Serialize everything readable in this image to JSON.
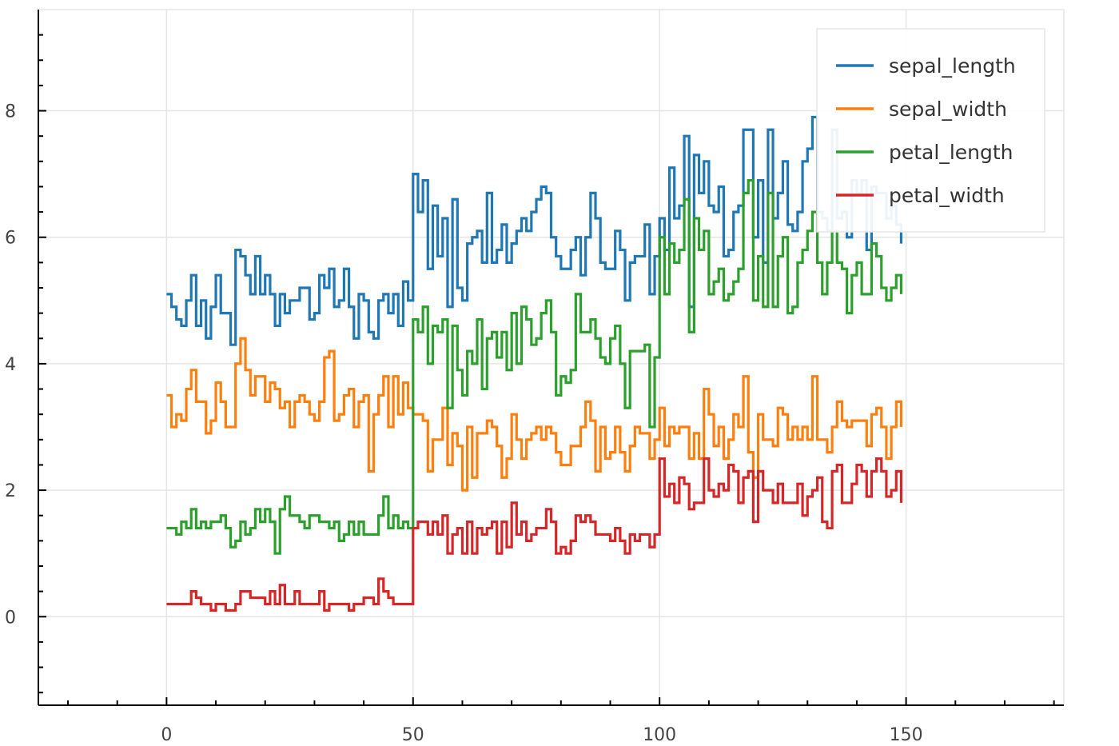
{
  "chart_data": {
    "type": "line",
    "step": true,
    "title": "",
    "xlabel": "",
    "ylabel": "",
    "xlim": [
      -26,
      182
    ],
    "ylim": [
      -1.4,
      9.6
    ],
    "grid": true,
    "x_ticks": [
      0,
      50,
      100,
      150
    ],
    "x_tick_labels": [
      "0",
      "50",
      "100",
      "150"
    ],
    "y_ticks": [
      0,
      2,
      4,
      6,
      8
    ],
    "y_tick_labels": [
      "0",
      "2",
      "4",
      "6",
      "8"
    ],
    "legend": {
      "placement": "top-right"
    },
    "x": [
      0,
      1,
      2,
      3,
      4,
      5,
      6,
      7,
      8,
      9,
      10,
      11,
      12,
      13,
      14,
      15,
      16,
      17,
      18,
      19,
      20,
      21,
      22,
      23,
      24,
      25,
      26,
      27,
      28,
      29,
      30,
      31,
      32,
      33,
      34,
      35,
      36,
      37,
      38,
      39,
      40,
      41,
      42,
      43,
      44,
      45,
      46,
      47,
      48,
      49,
      50,
      51,
      52,
      53,
      54,
      55,
      56,
      57,
      58,
      59,
      60,
      61,
      62,
      63,
      64,
      65,
      66,
      67,
      68,
      69,
      70,
      71,
      72,
      73,
      74,
      75,
      76,
      77,
      78,
      79,
      80,
      81,
      82,
      83,
      84,
      85,
      86,
      87,
      88,
      89,
      90,
      91,
      92,
      93,
      94,
      95,
      96,
      97,
      98,
      99,
      100,
      101,
      102,
      103,
      104,
      105,
      106,
      107,
      108,
      109,
      110,
      111,
      112,
      113,
      114,
      115,
      116,
      117,
      118,
      119,
      120,
      121,
      122,
      123,
      124,
      125,
      126,
      127,
      128,
      129,
      130,
      131,
      132,
      133,
      134,
      135,
      136,
      137,
      138,
      139,
      140,
      141,
      142,
      143,
      144,
      145,
      146,
      147,
      148,
      149
    ],
    "series": [
      {
        "name": "sepal_length",
        "color": "#1f77b4",
        "values": [
          5.1,
          4.9,
          4.7,
          4.6,
          5.0,
          5.4,
          4.6,
          5.0,
          4.4,
          4.9,
          5.4,
          4.8,
          4.8,
          4.3,
          5.8,
          5.7,
          5.4,
          5.1,
          5.7,
          5.1,
          5.4,
          5.1,
          4.6,
          5.1,
          4.8,
          5.0,
          5.0,
          5.2,
          5.2,
          4.7,
          4.8,
          5.4,
          5.2,
          5.5,
          4.9,
          5.0,
          5.5,
          4.9,
          4.4,
          5.1,
          5.0,
          4.5,
          4.4,
          5.0,
          5.1,
          4.8,
          5.1,
          4.6,
          5.3,
          5.0,
          7.0,
          6.4,
          6.9,
          5.5,
          6.5,
          5.7,
          6.3,
          4.9,
          6.6,
          5.2,
          5.0,
          5.9,
          6.0,
          6.1,
          5.6,
          6.7,
          5.6,
          5.8,
          6.2,
          5.6,
          5.9,
          6.1,
          6.3,
          6.1,
          6.4,
          6.6,
          6.8,
          6.7,
          6.0,
          5.7,
          5.5,
          5.5,
          5.8,
          6.0,
          5.4,
          6.0,
          6.7,
          6.3,
          5.6,
          5.5,
          5.5,
          6.1,
          5.8,
          5.0,
          5.6,
          5.7,
          5.7,
          6.2,
          5.1,
          5.7,
          6.3,
          5.8,
          7.1,
          6.3,
          6.5,
          7.6,
          4.9,
          7.3,
          6.7,
          7.2,
          6.5,
          6.4,
          6.8,
          5.7,
          5.8,
          6.4,
          6.5,
          7.7,
          7.7,
          6.0,
          6.9,
          5.6,
          7.7,
          6.3,
          6.7,
          7.2,
          6.2,
          6.1,
          6.4,
          7.2,
          7.4,
          7.9,
          6.4,
          6.3,
          6.1,
          7.7,
          6.3,
          6.4,
          6.0,
          6.9,
          6.7,
          6.9,
          5.8,
          6.8,
          6.7,
          6.7,
          6.3,
          6.5,
          6.2,
          5.9
        ]
      },
      {
        "name": "sepal_width",
        "color": "#ff7f0e",
        "values": [
          3.5,
          3.0,
          3.2,
          3.1,
          3.6,
          3.9,
          3.4,
          3.4,
          2.9,
          3.1,
          3.7,
          3.4,
          3.0,
          3.0,
          4.0,
          4.4,
          3.9,
          3.5,
          3.8,
          3.8,
          3.4,
          3.7,
          3.6,
          3.3,
          3.4,
          3.0,
          3.4,
          3.5,
          3.4,
          3.2,
          3.1,
          3.4,
          4.1,
          4.2,
          3.1,
          3.2,
          3.5,
          3.6,
          3.0,
          3.4,
          3.5,
          2.3,
          3.2,
          3.5,
          3.8,
          3.0,
          3.8,
          3.2,
          3.7,
          3.3,
          3.2,
          3.2,
          3.1,
          2.3,
          2.8,
          2.8,
          3.3,
          2.4,
          2.9,
          2.7,
          2.0,
          3.0,
          2.2,
          2.9,
          2.9,
          3.1,
          3.0,
          2.7,
          2.2,
          2.5,
          3.2,
          2.8,
          2.5,
          2.8,
          2.9,
          3.0,
          2.8,
          3.0,
          2.9,
          2.6,
          2.4,
          2.4,
          2.7,
          2.7,
          3.0,
          3.4,
          3.1,
          2.3,
          3.0,
          2.5,
          2.6,
          3.0,
          2.6,
          2.3,
          2.7,
          3.0,
          2.9,
          2.9,
          2.5,
          2.8,
          3.3,
          2.7,
          3.0,
          2.9,
          3.0,
          3.0,
          2.5,
          2.9,
          2.5,
          3.6,
          3.2,
          2.7,
          3.0,
          2.5,
          2.8,
          3.2,
          3.0,
          3.8,
          2.6,
          2.2,
          3.2,
          2.8,
          2.8,
          2.7,
          3.3,
          3.2,
          2.8,
          3.0,
          2.8,
          3.0,
          2.8,
          3.8,
          2.8,
          2.8,
          2.6,
          3.0,
          3.4,
          3.1,
          3.0,
          3.1,
          3.1,
          3.1,
          2.7,
          3.2,
          3.3,
          3.0,
          2.5,
          3.0,
          3.4,
          3.0
        ]
      },
      {
        "name": "petal_length",
        "color": "#2ca02c",
        "values": [
          1.4,
          1.4,
          1.3,
          1.5,
          1.4,
          1.7,
          1.4,
          1.5,
          1.4,
          1.5,
          1.5,
          1.6,
          1.4,
          1.1,
          1.2,
          1.5,
          1.3,
          1.4,
          1.7,
          1.5,
          1.7,
          1.5,
          1.0,
          1.7,
          1.9,
          1.6,
          1.6,
          1.5,
          1.4,
          1.6,
          1.6,
          1.5,
          1.5,
          1.4,
          1.5,
          1.2,
          1.3,
          1.5,
          1.3,
          1.5,
          1.3,
          1.3,
          1.3,
          1.6,
          1.9,
          1.4,
          1.6,
          1.4,
          1.5,
          1.4,
          4.7,
          4.5,
          4.9,
          4.0,
          4.6,
          4.5,
          4.7,
          3.3,
          4.6,
          3.9,
          3.5,
          4.2,
          4.0,
          4.7,
          3.6,
          4.4,
          4.5,
          4.1,
          4.5,
          3.9,
          4.8,
          4.0,
          4.9,
          4.7,
          4.3,
          4.4,
          4.8,
          5.0,
          4.5,
          3.5,
          3.8,
          3.7,
          3.9,
          5.1,
          4.5,
          4.5,
          4.7,
          4.4,
          4.1,
          4.0,
          4.4,
          4.6,
          4.0,
          3.3,
          4.2,
          4.2,
          4.2,
          4.3,
          3.0,
          4.1,
          6.0,
          5.1,
          5.9,
          5.6,
          5.8,
          6.6,
          4.5,
          6.3,
          5.8,
          6.1,
          5.1,
          5.3,
          5.5,
          5.0,
          5.1,
          5.3,
          5.5,
          6.7,
          6.9,
          5.0,
          5.7,
          4.9,
          6.7,
          4.9,
          5.7,
          6.0,
          4.8,
          4.9,
          5.6,
          5.8,
          6.1,
          6.4,
          5.6,
          5.1,
          5.6,
          6.1,
          5.6,
          5.5,
          4.8,
          5.4,
          5.6,
          5.1,
          5.1,
          5.9,
          5.7,
          5.2,
          5.0,
          5.2,
          5.4,
          5.1
        ]
      },
      {
        "name": "petal_width",
        "color": "#d62728",
        "values": [
          0.2,
          0.2,
          0.2,
          0.2,
          0.2,
          0.4,
          0.3,
          0.2,
          0.2,
          0.1,
          0.2,
          0.2,
          0.1,
          0.1,
          0.2,
          0.4,
          0.4,
          0.3,
          0.3,
          0.3,
          0.2,
          0.4,
          0.2,
          0.5,
          0.2,
          0.2,
          0.4,
          0.2,
          0.2,
          0.2,
          0.2,
          0.4,
          0.1,
          0.2,
          0.2,
          0.2,
          0.2,
          0.1,
          0.2,
          0.2,
          0.3,
          0.3,
          0.2,
          0.6,
          0.4,
          0.3,
          0.2,
          0.2,
          0.2,
          0.2,
          1.4,
          1.5,
          1.5,
          1.3,
          1.5,
          1.3,
          1.6,
          1.0,
          1.3,
          1.4,
          1.0,
          1.5,
          1.0,
          1.4,
          1.3,
          1.4,
          1.5,
          1.0,
          1.5,
          1.1,
          1.8,
          1.3,
          1.5,
          1.2,
          1.3,
          1.4,
          1.4,
          1.7,
          1.5,
          1.0,
          1.1,
          1.0,
          1.2,
          1.6,
          1.5,
          1.6,
          1.5,
          1.3,
          1.3,
          1.3,
          1.2,
          1.4,
          1.2,
          1.0,
          1.3,
          1.2,
          1.3,
          1.3,
          1.1,
          1.3,
          2.5,
          1.9,
          2.1,
          1.8,
          2.2,
          2.1,
          1.7,
          1.8,
          1.8,
          2.5,
          2.0,
          1.9,
          2.1,
          2.0,
          2.4,
          2.3,
          1.8,
          2.2,
          2.3,
          1.5,
          2.3,
          2.0,
          2.0,
          1.8,
          2.1,
          1.8,
          1.8,
          1.8,
          2.1,
          1.6,
          1.9,
          2.0,
          2.2,
          1.5,
          1.4,
          2.3,
          2.4,
          1.8,
          1.8,
          2.1,
          2.4,
          2.3,
          1.9,
          2.3,
          2.5,
          2.3,
          1.9,
          2.0,
          2.3,
          1.8
        ]
      }
    ]
  }
}
